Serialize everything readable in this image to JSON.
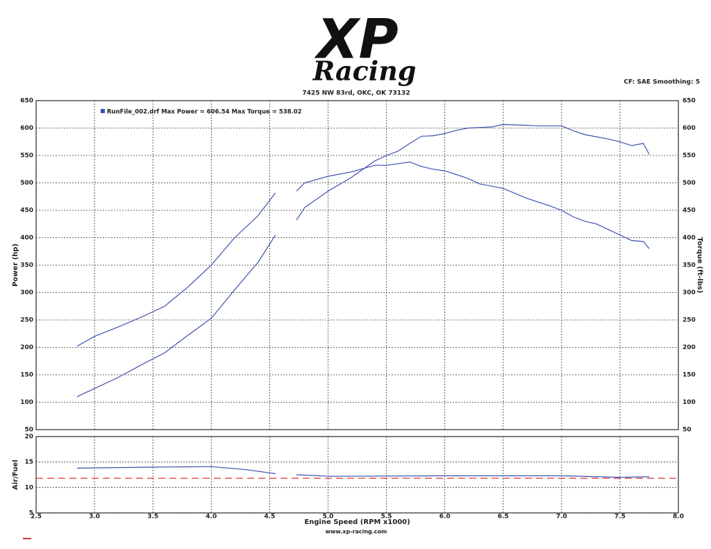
{
  "logo": {
    "mark": "XP",
    "script": "Racing"
  },
  "address": "7425 NW 83rd, OKC, OK 73132",
  "settings_text": "CF: SAE  Smoothing: 5",
  "website": "www.xp-racing.com",
  "chart_data": [
    {
      "type": "line",
      "legend_text": "RunFile_002.drf Max Power = 606.54    Max Torque = 538.02",
      "y_label": "Power (hp)",
      "y2_label": "Torque (ft-lbs)",
      "xlim": [
        2.5,
        8.0
      ],
      "ylim": [
        50,
        650
      ],
      "y2lim": [
        50,
        650
      ],
      "yticks": [
        50,
        100,
        150,
        200,
        250,
        300,
        350,
        400,
        450,
        500,
        550,
        600,
        650
      ],
      "y2ticks": [
        50,
        100,
        150,
        200,
        250,
        300,
        350,
        400,
        450,
        500,
        550,
        600,
        650
      ],
      "grid": true,
      "x": [
        2.85,
        3.0,
        3.2,
        3.4,
        3.6,
        3.8,
        4.0,
        4.2,
        4.4,
        4.55,
        4.64,
        4.73,
        4.8,
        5.0,
        5.2,
        5.4,
        5.5,
        5.6,
        5.7,
        5.8,
        5.9,
        6.0,
        6.1,
        6.2,
        6.3,
        6.4,
        6.5,
        6.7,
        6.8,
        6.9,
        7.0,
        7.1,
        7.2,
        7.3,
        7.4,
        7.5,
        7.6,
        7.7,
        7.75
      ],
      "series": [
        {
          "color": "#3a4fb0",
          "values": [
            110,
            125,
            145,
            168,
            190,
            222,
            253,
            305,
            355,
            405,
            null,
            432,
            455,
            485,
            510,
            540,
            550,
            558,
            572,
            585,
            586,
            590,
            596,
            600,
            601,
            602,
            606.5,
            605,
            604,
            604,
            604,
            595,
            588,
            584,
            580,
            575,
            568,
            572,
            552
          ]
        },
        {
          "color": "#3a4fb0",
          "axis": "y2",
          "values": [
            202,
            220,
            237,
            255,
            275,
            310,
            350,
            400,
            440,
            482,
            null,
            485,
            500,
            512,
            520,
            532,
            532,
            535,
            538,
            530,
            525,
            522,
            515,
            508,
            498,
            494,
            490,
            472,
            465,
            458,
            450,
            438,
            430,
            425,
            415,
            405,
            395,
            393,
            380
          ]
        }
      ]
    },
    {
      "type": "line",
      "y_label": "Air/Fuel",
      "x_label": "Engine Speed (RPM x1000)",
      "xlim": [
        2.5,
        8.0
      ],
      "ylim": [
        5,
        20
      ],
      "yticks": [
        5,
        10,
        15,
        20
      ],
      "xticks": [
        {
          "value": 2.5,
          "label": "2.5"
        },
        {
          "value": 3,
          "label": "3.0"
        },
        {
          "value": 3.5,
          "label": "3.5"
        },
        {
          "value": 4,
          "label": "4.0"
        },
        {
          "value": 4.5,
          "label": "4.5"
        },
        {
          "value": 5,
          "label": "5.0"
        },
        {
          "value": 5.5,
          "label": "5.5"
        },
        {
          "value": 6,
          "label": "6.0"
        },
        {
          "value": 6.5,
          "label": "6.5"
        },
        {
          "value": 7,
          "label": "7.0"
        },
        {
          "value": 7.5,
          "label": "7.5"
        },
        {
          "value": 8,
          "label": "8.0"
        }
      ],
      "grid": true,
      "target": 11.8,
      "target_color": "#e03030",
      "x": [
        2.85,
        3.5,
        4.0,
        4.3,
        4.55,
        4.64,
        4.73,
        5.0,
        6.0,
        7.0,
        7.5,
        7.75
      ],
      "series": [
        {
          "color": "#3a4fb0",
          "values": [
            13.8,
            14.0,
            14.1,
            13.5,
            12.7,
            null,
            12.5,
            12.2,
            12.3,
            12.3,
            12.0,
            12.1
          ]
        }
      ]
    }
  ]
}
